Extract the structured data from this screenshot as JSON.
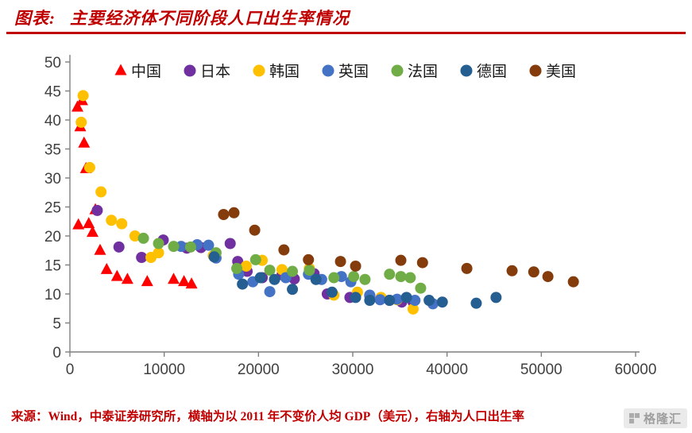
{
  "header": {
    "label": "图表:",
    "title": "主要经济体不同阶段人口出生率情况"
  },
  "footer": {
    "text": "来源：Wind，中泰证券研究所，横轴为以 2011 年不变价人均 GDP（美元），右轴为人口出生率"
  },
  "watermark": {
    "text": "格隆汇"
  },
  "colors": {
    "accent_red": "#C00000",
    "axis_line": "#7f7f7f",
    "axis_text": "#404040"
  },
  "chart_data": {
    "type": "scatter",
    "title": "主要经济体不同阶段人口出生率情况",
    "xlabel": "",
    "ylabel": "",
    "grid": false,
    "legend_position": "top",
    "x_axis": {
      "min": 0,
      "max": 60000,
      "ticks": [
        0,
        10000,
        20000,
        30000,
        40000,
        50000,
        60000
      ]
    },
    "y_axis": {
      "min": 0,
      "max": 50,
      "ticks": [
        0,
        5,
        10,
        15,
        20,
        25,
        30,
        35,
        40,
        45,
        50
      ]
    },
    "series": [
      {
        "key": "china",
        "name": "中国",
        "color": "#FF0000",
        "marker": "triangle",
        "points": [
          [
            800,
            42.2
          ],
          [
            1300,
            43.3
          ],
          [
            1100,
            38.8
          ],
          [
            1500,
            36.0
          ],
          [
            1700,
            31.6
          ],
          [
            900,
            21.9
          ],
          [
            2000,
            22.1
          ],
          [
            2700,
            24.5
          ],
          [
            2400,
            20.6
          ],
          [
            3200,
            17.5
          ],
          [
            3900,
            14.2
          ],
          [
            5000,
            13.0
          ],
          [
            6100,
            12.5
          ],
          [
            8200,
            12.1
          ],
          [
            11000,
            12.5
          ],
          [
            12100,
            12.1
          ],
          [
            12900,
            11.7
          ]
        ]
      },
      {
        "key": "japan",
        "name": "日本",
        "color": "#7030A0",
        "marker": "circle",
        "points": [
          [
            2900,
            24.4
          ],
          [
            5200,
            18.1
          ],
          [
            7600,
            16.3
          ],
          [
            9900,
            19.3
          ],
          [
            12400,
            17.9
          ],
          [
            13900,
            18.0
          ],
          [
            17000,
            18.7
          ],
          [
            17800,
            15.6
          ],
          [
            18800,
            13.9
          ],
          [
            20400,
            12.8
          ],
          [
            22500,
            13.3
          ],
          [
            23800,
            12.6
          ],
          [
            25900,
            13.5
          ],
          [
            27300,
            10.0
          ],
          [
            29700,
            9.4
          ],
          [
            31800,
            9.7
          ],
          [
            33900,
            8.9
          ],
          [
            35200,
            8.6
          ],
          [
            36400,
            8.6
          ]
        ]
      },
      {
        "key": "korea",
        "name": "韩国",
        "color": "#FFC000",
        "marker": "circle",
        "points": [
          [
            1400,
            44.2
          ],
          [
            1200,
            39.6
          ],
          [
            2100,
            31.8
          ],
          [
            3300,
            27.6
          ],
          [
            4400,
            22.7
          ],
          [
            5500,
            22.1
          ],
          [
            6900,
            20.0
          ],
          [
            8600,
            16.3
          ],
          [
            9400,
            17.1
          ],
          [
            15200,
            16.6
          ],
          [
            18700,
            14.8
          ],
          [
            20400,
            15.8
          ],
          [
            22500,
            14.2
          ],
          [
            25400,
            14.4
          ],
          [
            28000,
            9.8
          ],
          [
            30500,
            10.3
          ],
          [
            33000,
            9.4
          ],
          [
            34700,
            9.0
          ],
          [
            36400,
            7.4
          ]
        ]
      },
      {
        "key": "uk",
        "name": "英国",
        "color": "#4472C4",
        "marker": "circle",
        "points": [
          [
            11800,
            18.2
          ],
          [
            13500,
            18.5
          ],
          [
            14700,
            18.4
          ],
          [
            15500,
            16.2
          ],
          [
            17900,
            13.4
          ],
          [
            19400,
            12.1
          ],
          [
            21200,
            10.4
          ],
          [
            22900,
            12.8
          ],
          [
            25300,
            13.4
          ],
          [
            26700,
            12.5
          ],
          [
            28800,
            13.0
          ],
          [
            29800,
            12.1
          ],
          [
            31800,
            9.8
          ],
          [
            32900,
            9.0
          ],
          [
            34700,
            9.1
          ],
          [
            36600,
            8.9
          ],
          [
            38500,
            8.3
          ]
        ]
      },
      {
        "key": "france",
        "name": "法国",
        "color": "#70AD47",
        "marker": "circle",
        "points": [
          [
            7800,
            19.6
          ],
          [
            9400,
            18.7
          ],
          [
            11000,
            18.2
          ],
          [
            12800,
            18.1
          ],
          [
            15500,
            17.1
          ],
          [
            17700,
            14.4
          ],
          [
            19700,
            15.9
          ],
          [
            21200,
            14.1
          ],
          [
            23600,
            13.9
          ],
          [
            25400,
            14.1
          ],
          [
            28000,
            12.8
          ],
          [
            30100,
            13.0
          ],
          [
            31300,
            12.5
          ],
          [
            33900,
            13.4
          ],
          [
            35100,
            13.0
          ],
          [
            36100,
            12.8
          ],
          [
            37200,
            11.0
          ]
        ]
      },
      {
        "key": "germany",
        "name": "德国",
        "color": "#255E91",
        "marker": "circle",
        "points": [
          [
            15300,
            16.4
          ],
          [
            18300,
            11.7
          ],
          [
            20200,
            12.8
          ],
          [
            21700,
            12.5
          ],
          [
            23600,
            10.8
          ],
          [
            26100,
            12.5
          ],
          [
            27800,
            10.3
          ],
          [
            30300,
            9.4
          ],
          [
            31800,
            8.9
          ],
          [
            33900,
            8.9
          ],
          [
            35700,
            9.4
          ],
          [
            38100,
            8.9
          ],
          [
            39500,
            8.6
          ],
          [
            43100,
            8.4
          ],
          [
            45200,
            9.4
          ]
        ]
      },
      {
        "key": "usa",
        "name": "美国",
        "color": "#843C0C",
        "marker": "circle",
        "points": [
          [
            16300,
            23.7
          ],
          [
            17400,
            24.0
          ],
          [
            19600,
            21.0
          ],
          [
            22700,
            17.6
          ],
          [
            25300,
            15.9
          ],
          [
            28700,
            15.6
          ],
          [
            30300,
            14.8
          ],
          [
            35100,
            15.8
          ],
          [
            37400,
            15.4
          ],
          [
            42100,
            14.4
          ],
          [
            46900,
            14.0
          ],
          [
            49200,
            13.8
          ],
          [
            50700,
            13.0
          ],
          [
            53400,
            12.1
          ]
        ]
      }
    ]
  }
}
